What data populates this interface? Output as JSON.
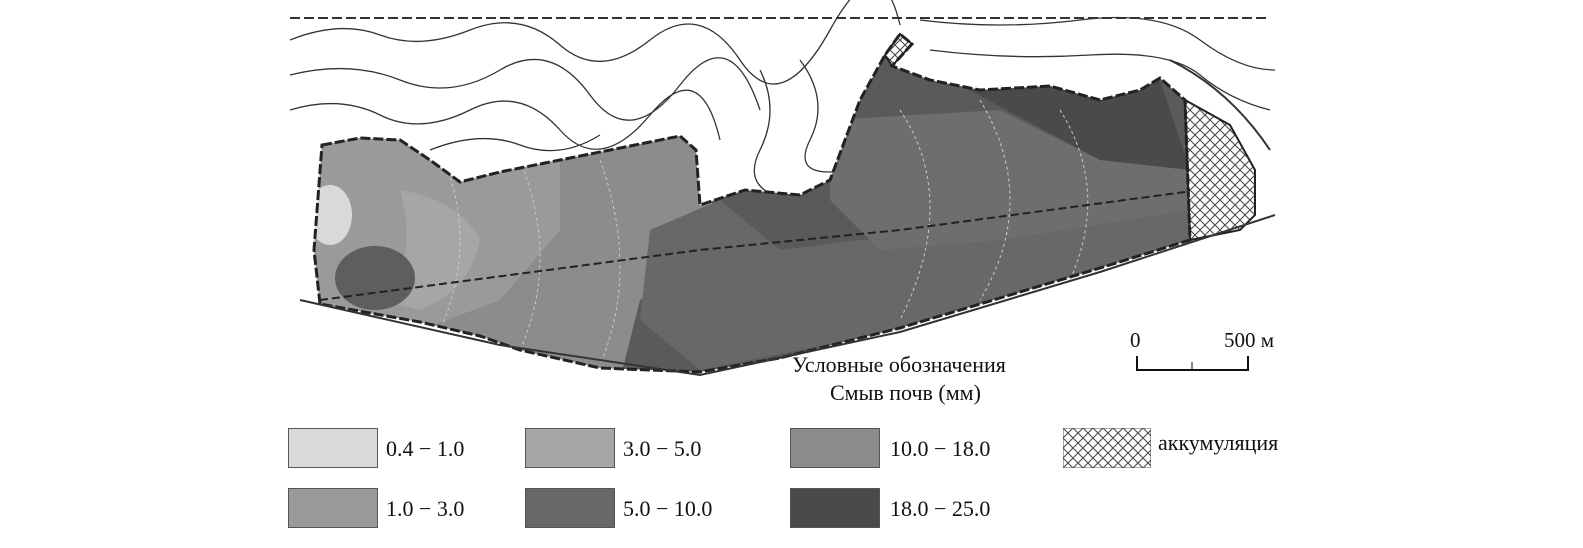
{
  "legend": {
    "title": "Условные обозначения",
    "subtitle": "Смыв почв (мм)",
    "items": [
      {
        "label": "0.4 − 1.0",
        "color": "#d9d9d9"
      },
      {
        "label": "1.0 − 3.0",
        "color": "#9a9a9a"
      },
      {
        "label": "3.0 − 5.0",
        "color": "#a6a6a6"
      },
      {
        "label": "5.0 − 10.0",
        "color": "#686868"
      },
      {
        "label": "10.0 − 18.0",
        "color": "#8c8c8c"
      },
      {
        "label": "18.0 − 25.0",
        "color": "#4a4a4a"
      },
      {
        "label": "аккумуляция",
        "pattern": "crosshatch"
      }
    ]
  },
  "scale_bar": {
    "start": "0",
    "end": "500 м"
  }
}
